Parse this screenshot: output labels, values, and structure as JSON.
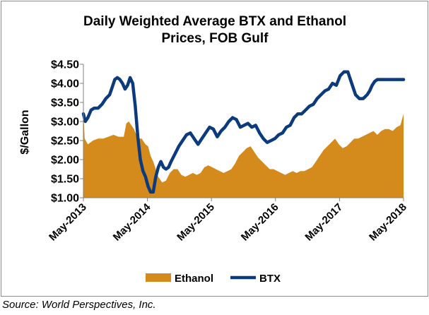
{
  "source_note": "Source: World Perspectives, Inc.",
  "chart_data": {
    "type": "area",
    "title_lines": [
      "Daily Weighted Average BTX and Ethanol",
      "Prices, FOB Gulf"
    ],
    "ylabel": "$/Gallon",
    "xlabel": "",
    "ylim": [
      1.0,
      4.5
    ],
    "y_ticks": [
      "$1.00",
      "$1.50",
      "$2.00",
      "$2.50",
      "$3.00",
      "$3.50",
      "$4.00",
      "$4.50"
    ],
    "y_tick_values": [
      1.0,
      1.5,
      2.0,
      2.5,
      3.0,
      3.5,
      4.0,
      4.5
    ],
    "x_tick_labels": [
      "May-2013",
      "May-2014",
      "May-2015",
      "May-2016",
      "May-2017",
      "May-2018"
    ],
    "x_tick_values": [
      2013.33,
      2014.33,
      2015.33,
      2016.33,
      2017.33,
      2018.33
    ],
    "xlim": [
      2013.33,
      2018.33
    ],
    "legend_position": "bottom",
    "grid": false,
    "series": [
      {
        "name": "Ethanol",
        "kind": "area",
        "color": "#d58a1c",
        "x": [
          2013.33,
          2013.35,
          2013.4,
          2013.48,
          2013.56,
          2013.64,
          2013.72,
          2013.8,
          2013.88,
          2013.96,
          2014.0,
          2014.04,
          2014.08,
          2014.12,
          2014.18,
          2014.24,
          2014.3,
          2014.34,
          2014.38,
          2014.42,
          2014.46,
          2014.5,
          2014.56,
          2014.62,
          2014.68,
          2014.74,
          2014.8,
          2014.86,
          2014.92,
          2014.98,
          2015.04,
          2015.1,
          2015.16,
          2015.22,
          2015.28,
          2015.34,
          2015.4,
          2015.46,
          2015.52,
          2015.58,
          2015.64,
          2015.7,
          2015.76,
          2015.82,
          2015.88,
          2015.94,
          2016.0,
          2016.06,
          2016.12,
          2016.18,
          2016.24,
          2016.3,
          2016.36,
          2016.42,
          2016.48,
          2016.54,
          2016.6,
          2016.66,
          2016.72,
          2016.78,
          2016.84,
          2016.9,
          2016.96,
          2017.02,
          2017.08,
          2017.14,
          2017.2,
          2017.26,
          2017.32,
          2017.38,
          2017.44,
          2017.5,
          2017.56,
          2017.62,
          2017.68,
          2017.74,
          2017.8,
          2017.86,
          2017.92,
          2017.98,
          2018.04,
          2018.1,
          2018.16,
          2018.22,
          2018.28,
          2018.33
        ],
        "values": [
          3.25,
          2.55,
          2.4,
          2.5,
          2.55,
          2.55,
          2.6,
          2.65,
          2.6,
          2.6,
          2.95,
          3.0,
          2.9,
          2.8,
          2.55,
          2.55,
          2.4,
          2.35,
          2.1,
          1.95,
          1.75,
          1.55,
          1.4,
          1.45,
          1.65,
          1.75,
          1.75,
          1.6,
          1.55,
          1.6,
          1.65,
          1.6,
          1.65,
          1.8,
          1.85,
          1.8,
          1.75,
          1.7,
          1.65,
          1.7,
          1.75,
          1.9,
          2.1,
          2.2,
          2.3,
          2.35,
          2.2,
          2.05,
          1.95,
          1.85,
          1.75,
          1.75,
          1.7,
          1.65,
          1.6,
          1.65,
          1.7,
          1.65,
          1.7,
          1.7,
          1.75,
          1.8,
          1.95,
          2.1,
          2.25,
          2.35,
          2.45,
          2.55,
          2.4,
          2.3,
          2.35,
          2.45,
          2.55,
          2.55,
          2.6,
          2.65,
          2.7,
          2.75,
          2.65,
          2.75,
          2.8,
          2.8,
          2.75,
          2.85,
          2.9,
          3.2
        ]
      },
      {
        "name": "BTX",
        "kind": "line",
        "color": "#0b3b7c",
        "x": [
          2013.33,
          2013.36,
          2013.4,
          2013.45,
          2013.5,
          2013.56,
          2013.62,
          2013.68,
          2013.74,
          2013.78,
          2013.82,
          2013.86,
          2013.9,
          2013.94,
          2013.98,
          2014.02,
          2014.06,
          2014.1,
          2014.14,
          2014.18,
          2014.22,
          2014.26,
          2014.3,
          2014.34,
          2014.38,
          2014.42,
          2014.46,
          2014.5,
          2014.54,
          2014.58,
          2014.62,
          2014.66,
          2014.7,
          2014.76,
          2014.82,
          2014.88,
          2014.94,
          2015.0,
          2015.06,
          2015.12,
          2015.18,
          2015.24,
          2015.3,
          2015.36,
          2015.42,
          2015.48,
          2015.54,
          2015.6,
          2015.66,
          2015.72,
          2015.78,
          2015.84,
          2015.9,
          2015.96,
          2016.02,
          2016.08,
          2016.14,
          2016.2,
          2016.26,
          2016.32,
          2016.38,
          2016.44,
          2016.5,
          2016.56,
          2016.62,
          2016.68,
          2016.74,
          2016.8,
          2016.86,
          2016.92,
          2016.98,
          2017.04,
          2017.1,
          2017.16,
          2017.22,
          2017.28,
          2017.34,
          2017.4,
          2017.46,
          2017.52,
          2017.58,
          2017.64,
          2017.7,
          2017.76,
          2017.8,
          2017.84,
          2017.88,
          2017.92,
          2017.96,
          2018.0,
          2018.04,
          2018.08,
          2018.12,
          2018.16,
          2018.2,
          2018.24,
          2018.28,
          2018.33
        ],
        "values": [
          3.2,
          3.0,
          3.1,
          3.3,
          3.35,
          3.35,
          3.45,
          3.6,
          3.7,
          3.9,
          4.1,
          4.15,
          4.1,
          4.0,
          3.85,
          3.95,
          4.15,
          4.0,
          3.4,
          2.6,
          2.0,
          1.7,
          1.55,
          1.3,
          1.15,
          1.15,
          1.55,
          1.8,
          1.95,
          1.8,
          1.75,
          1.8,
          1.95,
          2.15,
          2.35,
          2.5,
          2.65,
          2.7,
          2.55,
          2.4,
          2.55,
          2.7,
          2.85,
          2.8,
          2.6,
          2.75,
          2.85,
          3.0,
          3.1,
          3.05,
          2.85,
          2.9,
          2.95,
          2.85,
          2.9,
          2.7,
          2.55,
          2.45,
          2.5,
          2.55,
          2.65,
          2.7,
          2.85,
          2.9,
          3.1,
          3.2,
          3.2,
          3.3,
          3.4,
          3.45,
          3.6,
          3.7,
          3.8,
          3.85,
          4.0,
          3.95,
          4.2,
          4.3,
          4.3,
          4.0,
          3.7,
          3.6,
          3.6,
          3.7,
          3.8,
          3.95,
          4.05,
          4.1,
          4.1,
          4.1,
          4.1,
          4.1,
          4.1,
          4.1,
          4.1,
          4.1,
          4.1,
          4.1
        ]
      }
    ]
  }
}
